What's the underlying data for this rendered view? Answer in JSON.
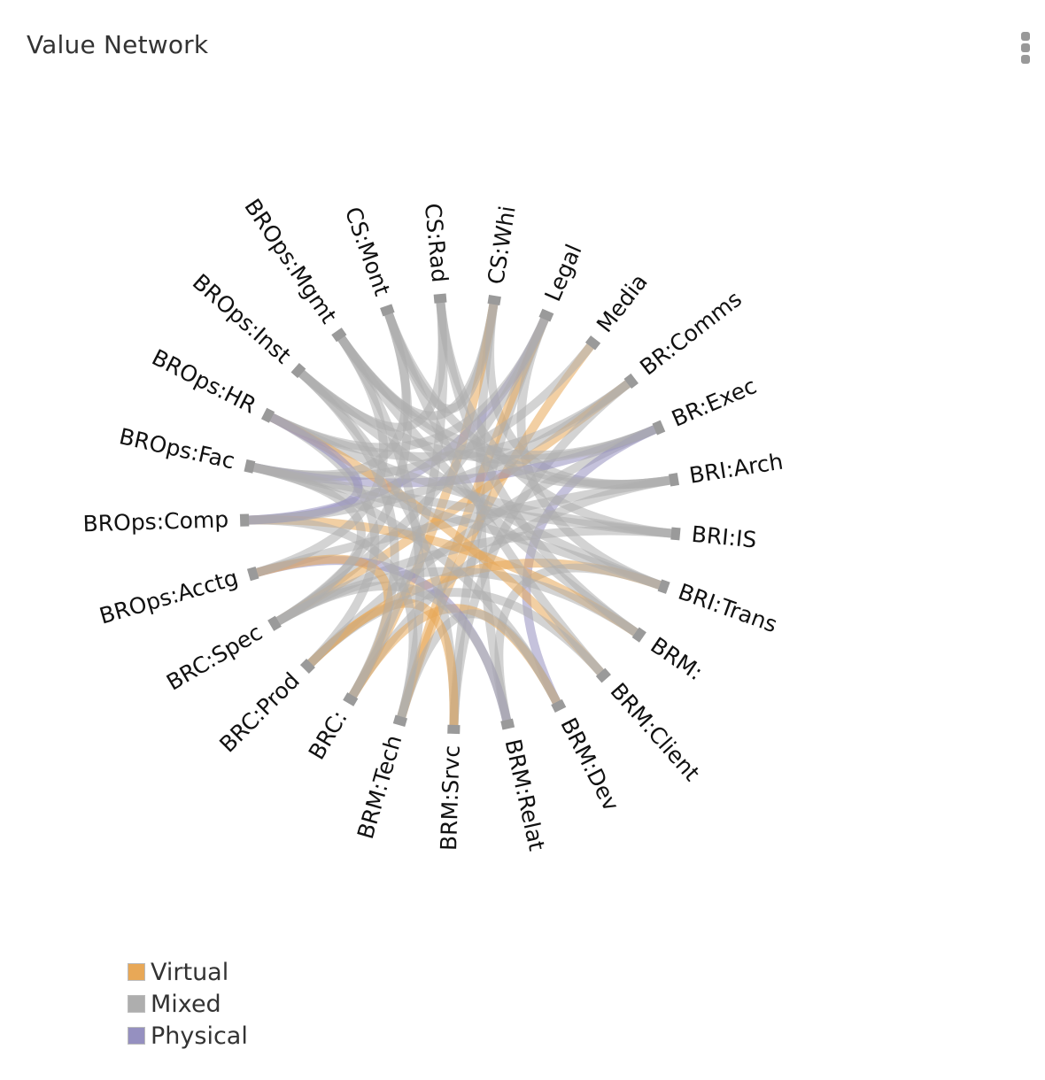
{
  "panel": {
    "title": "Value Network",
    "menu_icon": "kebab-menu-icon"
  },
  "chart_data": {
    "type": "chord",
    "nodes": [
      "CS:Whi",
      "Legal",
      "Media",
      "BR:Comms",
      "BR:Exec",
      "BRI:Arch",
      "BRI:IS",
      "BRI:Trans",
      "BRM:",
      "BRM:Client",
      "BRM:Dev",
      "BRM:Relat",
      "BRM:Srvc",
      "BRM:Tech",
      "BRC:",
      "BRC:Prod",
      "BRC:Spec",
      "BROps:Acctg",
      "BROps:Comp",
      "BROps:Fac",
      "BROps:HR",
      "BROps:Inst",
      "BROps:Mgmt",
      "CS:Mont",
      "CS:Rad"
    ],
    "flow_types": [
      {
        "name": "Virtual",
        "color": "#E8A857"
      },
      {
        "name": "Mixed",
        "color": "#AEAEAE"
      },
      {
        "name": "Physical",
        "color": "#9590C0"
      }
    ],
    "links": [
      [
        "CS:Whi",
        "BRM:Relat",
        "Mixed"
      ],
      [
        "CS:Whi",
        "BROps:Mgmt",
        "Mixed"
      ],
      [
        "CS:Whi",
        "BRC:",
        "Virtual"
      ],
      [
        "CS:Whi",
        "BRI:Arch",
        "Mixed"
      ],
      [
        "CS:Whi",
        "CS:Mont",
        "Mixed"
      ],
      [
        "Legal",
        "BRM:Srvc",
        "Mixed"
      ],
      [
        "Legal",
        "BRM:Tech",
        "Virtual"
      ],
      [
        "Legal",
        "BROps:Comp",
        "Physical"
      ],
      [
        "Legal",
        "BRC:Spec",
        "Mixed"
      ],
      [
        "Legal",
        "BRI:Trans",
        "Mixed"
      ],
      [
        "Media",
        "BRM:Tech",
        "Virtual"
      ],
      [
        "Media",
        "BROps:Fac",
        "Mixed"
      ],
      [
        "BR:Comms",
        "BROps:HR",
        "Mixed"
      ],
      [
        "BR:Comms",
        "BRC:Spec",
        "Virtual"
      ],
      [
        "BR:Comms",
        "BRM:Srvc",
        "Mixed"
      ],
      [
        "BR:Exec",
        "BROps:Fac",
        "Physical"
      ],
      [
        "BR:Exec",
        "BRC:Prod",
        "Mixed"
      ],
      [
        "BR:Exec",
        "BROps:Inst",
        "Mixed"
      ],
      [
        "BR:Exec",
        "BRM:Dev",
        "Physical"
      ],
      [
        "BRI:Arch",
        "BROps:Mgmt",
        "Mixed"
      ],
      [
        "BRI:Arch",
        "BRC:",
        "Mixed"
      ],
      [
        "BRI:Arch",
        "BROps:Acctg",
        "Mixed"
      ],
      [
        "BRI:IS",
        "BROps:HR",
        "Mixed"
      ],
      [
        "BRI:IS",
        "BRC:Spec",
        "Mixed"
      ],
      [
        "BRI:IS",
        "BROps:Fac",
        "Mixed"
      ],
      [
        "BRI:Trans",
        "BROps:Inst",
        "Mixed"
      ],
      [
        "BRI:Trans",
        "BRC:Prod",
        "Virtual"
      ],
      [
        "BRI:Trans",
        "BRM:Relat",
        "Mixed"
      ],
      [
        "BRM:",
        "BROps:Mgmt",
        "Mixed"
      ],
      [
        "BRM:",
        "BROps:Comp",
        "Virtual"
      ],
      [
        "BRM:",
        "BRC:Spec",
        "Mixed"
      ],
      [
        "BRM:",
        "CS:Rad",
        "Mixed"
      ],
      [
        "BRM:Client",
        "BROps:HR",
        "Virtual"
      ],
      [
        "BRM:Client",
        "BRC:Prod",
        "Mixed"
      ],
      [
        "BRM:Client",
        "CS:Mont",
        "Mixed"
      ],
      [
        "BRM:Dev",
        "BROps:Fac",
        "Mixed"
      ],
      [
        "BRM:Dev",
        "BRC:",
        "Virtual"
      ],
      [
        "BRM:Dev",
        "BRM:Tech",
        "Mixed"
      ],
      [
        "BRM:Relat",
        "BROps:Acctg",
        "Physical"
      ],
      [
        "BRM:Relat",
        "BRC:Spec",
        "Mixed"
      ],
      [
        "BRM:Srvc",
        "BROps:Inst",
        "Mixed"
      ],
      [
        "BRM:Srvc",
        "BRC:Prod",
        "Virtual"
      ],
      [
        "BRM:Tech",
        "BROps:Comp",
        "Mixed"
      ],
      [
        "BRM:Tech",
        "BROps:Mgmt",
        "Mixed"
      ],
      [
        "BRC:",
        "BROps:Acctg",
        "Virtual"
      ],
      [
        "BRC:",
        "BROps:Inst",
        "Mixed"
      ],
      [
        "BRC:",
        "CS:Rad",
        "Mixed"
      ],
      [
        "BRC:Prod",
        "BROps:HR",
        "Mixed"
      ],
      [
        "BRC:Spec",
        "BROps:Fac",
        "Mixed"
      ],
      [
        "BRC:Spec",
        "CS:Mont",
        "Mixed"
      ],
      [
        "BROps:Acctg",
        "BROps:Mgmt",
        "Mixed"
      ],
      [
        "BROps:Comp",
        "BROps:HR",
        "Physical"
      ],
      [
        "BROps:Fac",
        "CS:Mont",
        "Mixed"
      ],
      [
        "BROps:Inst",
        "CS:Rad",
        "Mixed"
      ],
      [
        "BROps:HR",
        "Legal",
        "Mixed"
      ],
      [
        "BROps:Mgmt",
        "BR:Exec",
        "Mixed"
      ],
      [
        "CS:Rad",
        "BRI:IS",
        "Mixed"
      ],
      [
        "CS:Mont",
        "BRI:Arch",
        "Mixed"
      ],
      [
        "BROps:Fac",
        "BRI:Trans",
        "Mixed"
      ],
      [
        "BROps:Comp",
        "BR:Comms",
        "Mixed"
      ]
    ]
  }
}
